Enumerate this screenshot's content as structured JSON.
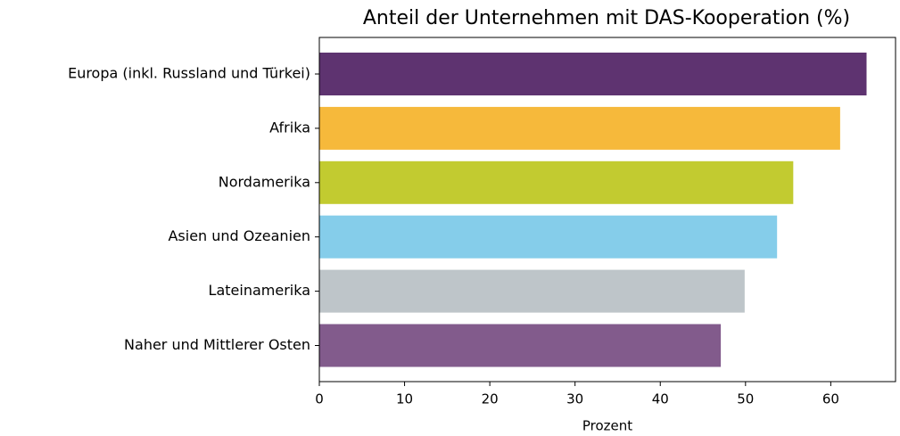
{
  "chart_data": {
    "type": "barh",
    "title": "Anteil der Unternehmen mit DAS-Kooperation (%)",
    "categories": [
      "Europa (inkl. Russland und Türkei)",
      "Afrika",
      "Nordamerika",
      "Asien und Ozeanien",
      "Lateinamerika",
      "Naher und Mittlerer Osten"
    ],
    "values": [
      64.2,
      61.1,
      55.6,
      53.7,
      49.9,
      47.1
    ],
    "colors": [
      "#5e3370",
      "#f6b93b",
      "#c2cb30",
      "#85cdea",
      "#bec5c9",
      "#825b8c"
    ],
    "xlabel": "Prozent",
    "xlim": [
      0,
      67.6
    ],
    "xticks": [
      0,
      10,
      20,
      30,
      40,
      50,
      60
    ],
    "grid": false
  }
}
